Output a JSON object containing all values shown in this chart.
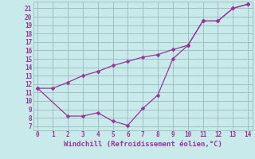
{
  "line1_x": [
    0,
    1,
    2,
    3,
    4,
    5,
    6,
    7,
    8,
    9,
    10,
    11,
    12,
    13,
    14
  ],
  "line1_y": [
    11.5,
    11.5,
    12.2,
    13.0,
    13.5,
    14.2,
    14.7,
    15.2,
    15.5,
    16.1,
    16.6,
    19.5,
    19.5,
    21.0,
    21.5
  ],
  "line2_x": [
    0,
    2,
    3,
    4,
    5,
    6,
    7,
    8,
    9,
    10,
    11,
    12,
    13,
    14
  ],
  "line2_y": [
    11.5,
    8.2,
    8.2,
    8.6,
    7.6,
    7.1,
    9.1,
    10.7,
    15.0,
    16.6,
    19.5,
    19.5,
    21.0,
    21.5
  ],
  "line_color": "#993399",
  "bg_color": "#c8eaea",
  "grid_color": "#99bbbb",
  "xlabel": "Windchill (Refroidissement éolien,°C)",
  "xlim": [
    -0.3,
    14.3
  ],
  "ylim": [
    6.5,
    21.8
  ],
  "xticks": [
    0,
    1,
    2,
    3,
    4,
    5,
    6,
    7,
    8,
    9,
    10,
    11,
    12,
    13,
    14
  ],
  "yticks": [
    7,
    8,
    9,
    10,
    11,
    12,
    13,
    14,
    15,
    16,
    17,
    18,
    19,
    20,
    21
  ],
  "font_color": "#993399",
  "tick_fontsize": 5.5,
  "xlabel_fontsize": 6.5,
  "marker_size": 2.5,
  "linewidth": 0.9
}
